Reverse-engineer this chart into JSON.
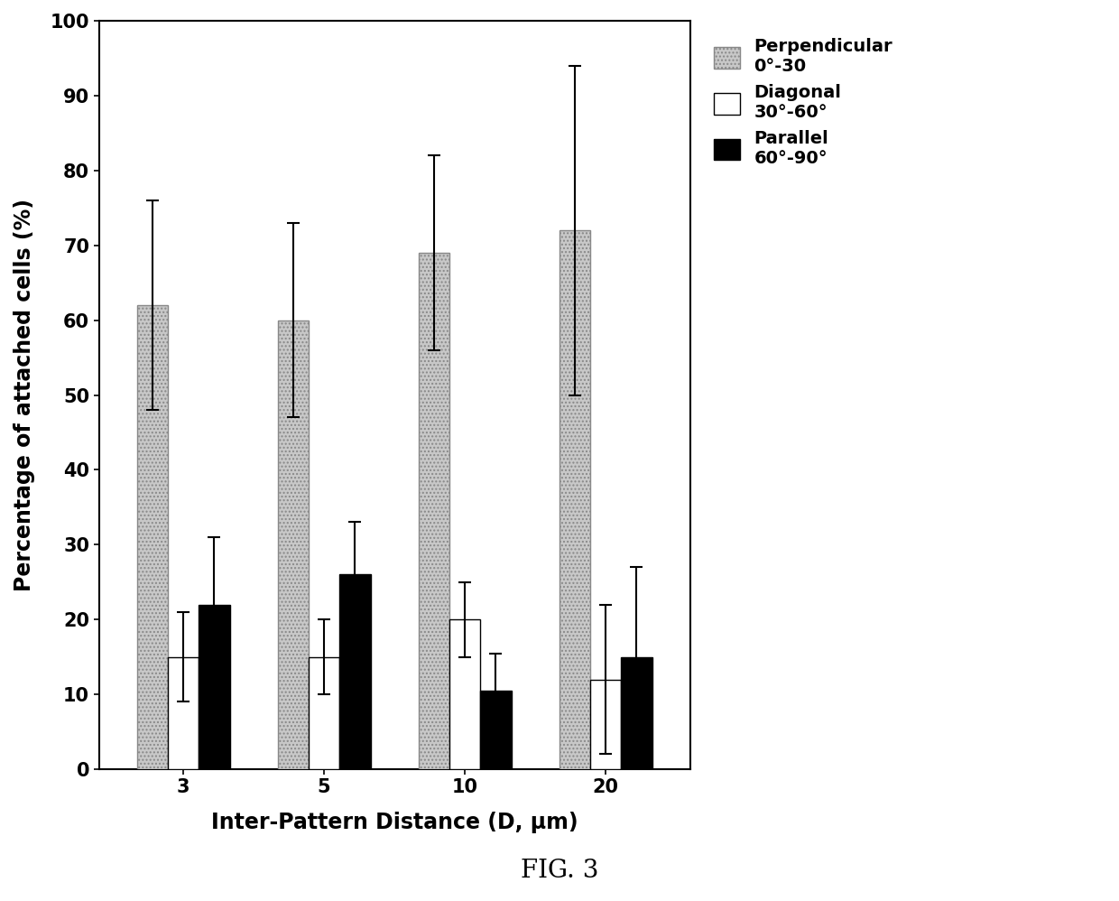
{
  "categories": [
    "3",
    "5",
    "10",
    "20"
  ],
  "xlabel": "Inter-Pattern Distance (D, μm)",
  "ylabel": "Percentage of attached cells (%)",
  "ylim": [
    0,
    100
  ],
  "yticks": [
    0,
    10,
    20,
    30,
    40,
    50,
    60,
    70,
    80,
    90,
    100
  ],
  "bar_width": 0.22,
  "series": [
    {
      "label": "Perpendicular\n0°-30",
      "values": [
        62,
        60,
        69,
        72
      ],
      "errors": [
        14,
        13,
        13,
        22
      ],
      "color": "#c8c8c8",
      "hatch": "....",
      "edgecolor": "#888888"
    },
    {
      "label": "Diagonal\n30°-60°",
      "values": [
        15,
        15,
        20,
        12
      ],
      "errors": [
        6,
        5,
        5,
        10
      ],
      "color": "#ffffff",
      "hatch": "",
      "edgecolor": "#000000"
    },
    {
      "label": "Parallel\n60°-90°",
      "values": [
        22,
        26,
        10.5,
        15
      ],
      "errors": [
        9,
        7,
        5,
        12
      ],
      "color": "#000000",
      "hatch": "",
      "edgecolor": "#000000"
    }
  ],
  "fig_caption": "FIG. 3",
  "background_color": "#ffffff",
  "axis_fontsize": 17,
  "tick_fontsize": 15,
  "legend_fontsize": 14,
  "caption_fontsize": 20
}
